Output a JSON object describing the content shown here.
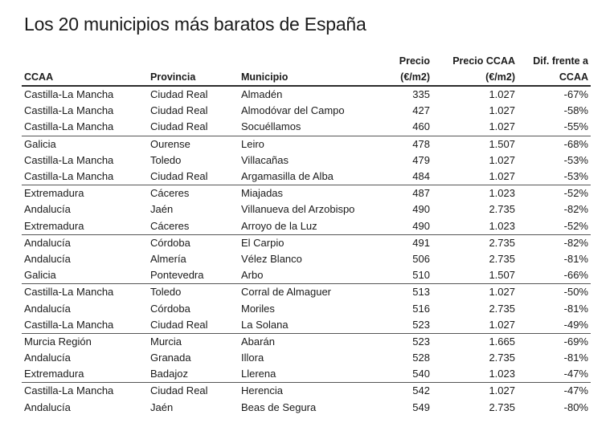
{
  "title": "Los 20 municipios más baratos de España",
  "table": {
    "headers": {
      "ccaa": "CCAA",
      "provincia": "Provincia",
      "municipio": "Municipio",
      "precio_line1": "Precio",
      "precio_line2": "(€/m2)",
      "precio_ccaa_line1": "Precio CCAA",
      "precio_ccaa_line2": "(€/m2)",
      "dif_line1": "Dif. frente a",
      "dif_line2": "CCAA"
    },
    "rows": [
      {
        "ccaa": "Castilla-La Mancha",
        "provincia": "Ciudad Real",
        "municipio": "Almadén",
        "precio": "335",
        "precio_ccaa": "1.027",
        "dif": "-67%"
      },
      {
        "ccaa": "Castilla-La Mancha",
        "provincia": "Ciudad Real",
        "municipio": "Almodóvar del Campo",
        "precio": "427",
        "precio_ccaa": "1.027",
        "dif": "-58%"
      },
      {
        "ccaa": "Castilla-La Mancha",
        "provincia": "Ciudad Real",
        "municipio": "Socuéllamos",
        "precio": "460",
        "precio_ccaa": "1.027",
        "dif": "-55%"
      },
      {
        "ccaa": "Galicia",
        "provincia": "Ourense",
        "municipio": "Leiro",
        "precio": "478",
        "precio_ccaa": "1.507",
        "dif": "-68%"
      },
      {
        "ccaa": "Castilla-La Mancha",
        "provincia": "Toledo",
        "municipio": "Villacañas",
        "precio": "479",
        "precio_ccaa": "1.027",
        "dif": "-53%"
      },
      {
        "ccaa": "Castilla-La Mancha",
        "provincia": "Ciudad Real",
        "municipio": "Argamasilla de Alba",
        "precio": "484",
        "precio_ccaa": "1.027",
        "dif": "-53%"
      },
      {
        "ccaa": "Extremadura",
        "provincia": "Cáceres",
        "municipio": "Miajadas",
        "precio": "487",
        "precio_ccaa": "1.023",
        "dif": "-52%"
      },
      {
        "ccaa": "Andalucía",
        "provincia": "Jaén",
        "municipio": "Villanueva del Arzobispo",
        "precio": "490",
        "precio_ccaa": "2.735",
        "dif": "-82%"
      },
      {
        "ccaa": "Extremadura",
        "provincia": "Cáceres",
        "municipio": "Arroyo de la Luz",
        "precio": "490",
        "precio_ccaa": "1.023",
        "dif": "-52%"
      },
      {
        "ccaa": "Andalucía",
        "provincia": "Córdoba",
        "municipio": "El Carpio",
        "precio": "491",
        "precio_ccaa": "2.735",
        "dif": "-82%"
      },
      {
        "ccaa": "Andalucía",
        "provincia": "Almería",
        "municipio": "Vélez Blanco",
        "precio": "506",
        "precio_ccaa": "2.735",
        "dif": "-81%"
      },
      {
        "ccaa": "Galicia",
        "provincia": "Pontevedra",
        "municipio": "Arbo",
        "precio": "510",
        "precio_ccaa": "1.507",
        "dif": "-66%"
      },
      {
        "ccaa": "Castilla-La Mancha",
        "provincia": "Toledo",
        "municipio": "Corral de Almaguer",
        "precio": "513",
        "precio_ccaa": "1.027",
        "dif": "-50%"
      },
      {
        "ccaa": "Andalucía",
        "provincia": "Córdoba",
        "municipio": "Moriles",
        "precio": "516",
        "precio_ccaa": "2.735",
        "dif": "-81%"
      },
      {
        "ccaa": "Castilla-La Mancha",
        "provincia": "Ciudad Real",
        "municipio": "La Solana",
        "precio": "523",
        "precio_ccaa": "1.027",
        "dif": "-49%"
      },
      {
        "ccaa": "Murcia Región",
        "provincia": "Murcia",
        "municipio": "Abarán",
        "precio": "523",
        "precio_ccaa": "1.665",
        "dif": "-69%"
      },
      {
        "ccaa": "Andalucía",
        "provincia": "Granada",
        "municipio": "Illora",
        "precio": "528",
        "precio_ccaa": "2.735",
        "dif": "-81%"
      },
      {
        "ccaa": "Extremadura",
        "provincia": "Badajoz",
        "municipio": "Llerena",
        "precio": "540",
        "precio_ccaa": "1.023",
        "dif": "-47%"
      },
      {
        "ccaa": "Castilla-La Mancha",
        "provincia": "Ciudad Real",
        "municipio": "Herencia",
        "precio": "542",
        "precio_ccaa": "1.027",
        "dif": "-47%"
      },
      {
        "ccaa": "Andalucía",
        "provincia": "Jaén",
        "municipio": "Beas de Segura",
        "precio": "549",
        "precio_ccaa": "2.735",
        "dif": "-80%"
      }
    ]
  }
}
